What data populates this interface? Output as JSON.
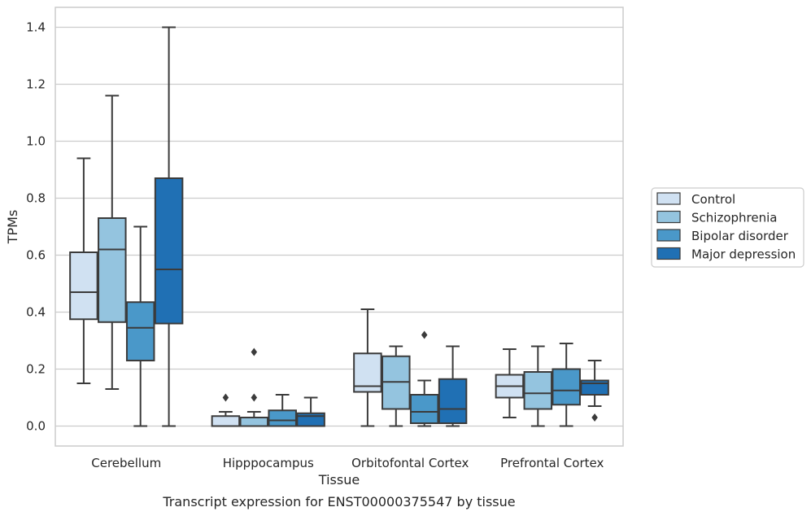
{
  "chart_data": {
    "type": "box",
    "xlabel": "Tissue",
    "ylabel": "TPMs",
    "caption": "Transcript expression for ENST00000375547 by tissue",
    "ylim": [
      -0.07,
      1.47
    ],
    "yticks": [
      0.0,
      0.2,
      0.4,
      0.6,
      0.8,
      1.0,
      1.2,
      1.4
    ],
    "ytick_labels": [
      "0.0",
      "0.2",
      "0.4",
      "0.6",
      "0.8",
      "1.0",
      "1.2",
      "1.4"
    ],
    "grid": "horizontal",
    "legend_position": "right",
    "categories": [
      "Cerebellum",
      "Hipppocampus",
      "Orbitofontal Cortex",
      "Prefrontal Cortex"
    ],
    "series": [
      {
        "name": "Control",
        "color": "#d0e1f2",
        "boxes": [
          {
            "lower_whisker": 0.15,
            "q1": 0.375,
            "median": 0.47,
            "q3": 0.61,
            "upper_whisker": 0.94,
            "outliers": []
          },
          {
            "lower_whisker": 0.0,
            "q1": 0.0,
            "median": 0.0,
            "q3": 0.035,
            "upper_whisker": 0.05,
            "outliers": [
              0.1
            ]
          },
          {
            "lower_whisker": 0.0,
            "q1": 0.12,
            "median": 0.14,
            "q3": 0.255,
            "upper_whisker": 0.41,
            "outliers": []
          },
          {
            "lower_whisker": 0.03,
            "q1": 0.1,
            "median": 0.14,
            "q3": 0.18,
            "upper_whisker": 0.27,
            "outliers": []
          }
        ]
      },
      {
        "name": "Schizophrenia",
        "color": "#94c4df",
        "boxes": [
          {
            "lower_whisker": 0.13,
            "q1": 0.365,
            "median": 0.62,
            "q3": 0.73,
            "upper_whisker": 1.16,
            "outliers": []
          },
          {
            "lower_whisker": 0.0,
            "q1": 0.0,
            "median": 0.0,
            "q3": 0.03,
            "upper_whisker": 0.05,
            "outliers": [
              0.1,
              0.26
            ]
          },
          {
            "lower_whisker": 0.0,
            "q1": 0.06,
            "median": 0.155,
            "q3": 0.245,
            "upper_whisker": 0.28,
            "outliers": []
          },
          {
            "lower_whisker": 0.0,
            "q1": 0.06,
            "median": 0.115,
            "q3": 0.19,
            "upper_whisker": 0.28,
            "outliers": []
          }
        ]
      },
      {
        "name": "Bipolar disorder",
        "color": "#4a98c9",
        "boxes": [
          {
            "lower_whisker": 0.0,
            "q1": 0.23,
            "median": 0.345,
            "q3": 0.435,
            "upper_whisker": 0.7,
            "outliers": []
          },
          {
            "lower_whisker": 0.0,
            "q1": 0.0,
            "median": 0.02,
            "q3": 0.055,
            "upper_whisker": 0.11,
            "outliers": []
          },
          {
            "lower_whisker": 0.0,
            "q1": 0.01,
            "median": 0.05,
            "q3": 0.11,
            "upper_whisker": 0.16,
            "outliers": [
              0.32
            ]
          },
          {
            "lower_whisker": 0.0,
            "q1": 0.075,
            "median": 0.125,
            "q3": 0.2,
            "upper_whisker": 0.29,
            "outliers": []
          }
        ]
      },
      {
        "name": "Major depression",
        "color": "#2070b4",
        "boxes": [
          {
            "lower_whisker": 0.0,
            "q1": 0.36,
            "median": 0.55,
            "q3": 0.87,
            "upper_whisker": 1.4,
            "outliers": []
          },
          {
            "lower_whisker": 0.0,
            "q1": 0.0,
            "median": 0.035,
            "q3": 0.045,
            "upper_whisker": 0.1,
            "outliers": []
          },
          {
            "lower_whisker": 0.0,
            "q1": 0.01,
            "median": 0.06,
            "q3": 0.165,
            "upper_whisker": 0.28,
            "outliers": []
          },
          {
            "lower_whisker": 0.07,
            "q1": 0.11,
            "median": 0.15,
            "q3": 0.16,
            "upper_whisker": 0.23,
            "outliers": [
              0.03
            ]
          }
        ]
      }
    ]
  }
}
